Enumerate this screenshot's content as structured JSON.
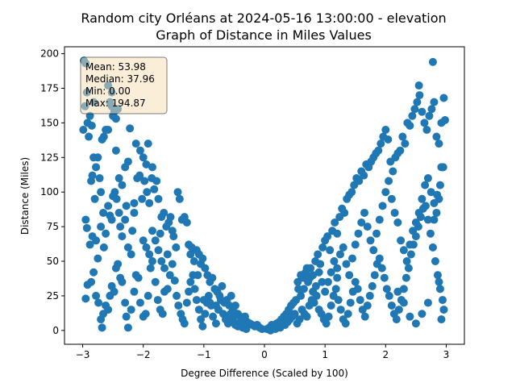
{
  "chart_data": {
    "type": "scatter",
    "title_line1": "Random city Orléans at 2024-05-16 13:00:00  - elevation",
    "title_line2": "Graph of Distance in Miles Values",
    "xlabel": "Degree Difference (Scaled by 100)",
    "ylabel": "Distance (Miles)",
    "xlim": [
      -3.3,
      3.3
    ],
    "ylim": [
      -10,
      205
    ],
    "xticks": [
      -3,
      -2,
      -1,
      0,
      1,
      2,
      3
    ],
    "yticks": [
      0,
      25,
      50,
      75,
      100,
      125,
      150,
      175,
      200
    ],
    "grid": false,
    "color": "#1f77b4",
    "stats": {
      "mean": "Mean: 53.98",
      "median": "Median: 37.96",
      "min": "Min: 0.00",
      "max": "Max: 194.87"
    },
    "points": [
      [
        -2.98,
        195
      ],
      [
        -2.95,
        193
      ],
      [
        -2.93,
        172
      ],
      [
        -2.96,
        162
      ],
      [
        -2.92,
        150
      ],
      [
        -2.99,
        145
      ],
      [
        -2.88,
        155
      ],
      [
        -2.85,
        148
      ],
      [
        -2.82,
        165
      ],
      [
        -2.9,
        140
      ],
      [
        -2.86,
        108
      ],
      [
        -2.84,
        112
      ],
      [
        -2.82,
        125
      ],
      [
        -2.78,
        118
      ],
      [
        -2.75,
        125
      ],
      [
        -2.72,
        110
      ],
      [
        -2.7,
        100
      ],
      [
        -2.68,
        138
      ],
      [
        -2.65,
        140
      ],
      [
        -2.62,
        145
      ],
      [
        -2.58,
        145
      ],
      [
        -2.55,
        165
      ],
      [
        -2.52,
        162
      ],
      [
        -2.5,
        155
      ],
      [
        -2.48,
        158
      ],
      [
        -2.45,
        153
      ],
      [
        -2.42,
        160
      ],
      [
        -2.58,
        177
      ],
      [
        -2.52,
        172
      ],
      [
        -2.22,
        146
      ],
      [
        -2.12,
        135
      ],
      [
        -2.05,
        130
      ],
      [
        -2.0,
        125
      ],
      [
        -1.95,
        120
      ],
      [
        -1.92,
        135
      ],
      [
        -1.85,
        118
      ],
      [
        -2.95,
        80
      ],
      [
        -2.93,
        74
      ],
      [
        -2.88,
        62
      ],
      [
        -2.84,
        68
      ],
      [
        -2.8,
        95
      ],
      [
        -2.75,
        52
      ],
      [
        -2.7,
        75
      ],
      [
        -2.66,
        85
      ],
      [
        -2.62,
        70
      ],
      [
        -2.58,
        90
      ],
      [
        -2.55,
        83
      ],
      [
        -2.52,
        80
      ],
      [
        -2.5,
        97
      ],
      [
        -2.47,
        100
      ],
      [
        -2.44,
        95
      ],
      [
        -2.4,
        85
      ],
      [
        -2.38,
        75
      ],
      [
        -2.35,
        68
      ],
      [
        -2.3,
        80
      ],
      [
        -2.28,
        90
      ],
      [
        -2.25,
        60
      ],
      [
        -2.2,
        55
      ],
      [
        -2.18,
        72
      ],
      [
        -2.15,
        85
      ],
      [
        -2.1,
        110
      ],
      [
        -2.06,
        112
      ],
      [
        -2.02,
        95
      ],
      [
        -1.98,
        108
      ],
      [
        -1.94,
        100
      ],
      [
        -1.9,
        92
      ],
      [
        -1.86,
        110
      ],
      [
        -1.82,
        102
      ],
      [
        -1.78,
        108
      ],
      [
        -1.75,
        95
      ],
      [
        -1.72,
        70
      ],
      [
        -1.7,
        82
      ],
      [
        -1.66,
        85
      ],
      [
        -1.62,
        75
      ],
      [
        -1.58,
        78
      ],
      [
        -1.55,
        82
      ],
      [
        -1.52,
        72
      ],
      [
        -1.5,
        68
      ],
      [
        -1.46,
        60
      ],
      [
        -1.43,
        100
      ],
      [
        -1.4,
        95
      ],
      [
        -1.36,
        80
      ],
      [
        -1.32,
        82
      ],
      [
        -1.28,
        78
      ],
      [
        -1.25,
        62
      ],
      [
        -1.22,
        55
      ],
      [
        -1.2,
        60
      ],
      [
        -1.16,
        50
      ],
      [
        -1.12,
        58
      ],
      [
        -1.08,
        55
      ],
      [
        -1.05,
        48
      ],
      [
        -1.02,
        52
      ],
      [
        -0.98,
        45
      ],
      [
        -0.94,
        40
      ],
      [
        -0.9,
        35
      ],
      [
        -0.86,
        38
      ],
      [
        -0.82,
        30
      ],
      [
        -0.78,
        28
      ],
      [
        -0.74,
        25
      ],
      [
        -0.7,
        32
      ],
      [
        -0.66,
        20
      ],
      [
        -0.62,
        22
      ],
      [
        -0.58,
        18
      ],
      [
        -0.55,
        25
      ],
      [
        -0.52,
        15
      ],
      [
        -0.48,
        18
      ],
      [
        -0.44,
        12
      ],
      [
        -0.4,
        10
      ],
      [
        -0.36,
        8
      ],
      [
        -0.32,
        10
      ],
      [
        -0.28,
        6
      ],
      [
        -0.24,
        5
      ],
      [
        -0.2,
        4
      ],
      [
        -0.16,
        3
      ],
      [
        -0.12,
        4
      ],
      [
        -0.08,
        2
      ],
      [
        -0.04,
        1
      ],
      [
        -2.95,
        23
      ],
      [
        -2.92,
        33
      ],
      [
        -2.86,
        35
      ],
      [
        -2.82,
        42
      ],
      [
        -2.78,
        25
      ],
      [
        -2.74,
        20
      ],
      [
        -2.7,
        8
      ],
      [
        -2.68,
        2
      ],
      [
        -2.66,
        12
      ],
      [
        -2.62,
        18
      ],
      [
        -2.58,
        15
      ],
      [
        -2.55,
        25
      ],
      [
        -2.52,
        32
      ],
      [
        -2.48,
        28
      ],
      [
        -2.45,
        45
      ],
      [
        -2.42,
        48
      ],
      [
        -2.38,
        38
      ],
      [
        -2.35,
        35
      ],
      [
        -2.3,
        20
      ],
      [
        -2.28,
        10
      ],
      [
        -2.25,
        2
      ],
      [
        -2.2,
        15
      ],
      [
        -2.15,
        28
      ],
      [
        -2.12,
        40
      ],
      [
        -2.08,
        38
      ],
      [
        -2.05,
        20
      ],
      [
        -2.0,
        10
      ],
      [
        -1.96,
        12
      ],
      [
        -1.92,
        25
      ],
      [
        -1.88,
        45
      ],
      [
        -1.85,
        50
      ],
      [
        -1.8,
        35
      ],
      [
        -1.76,
        22
      ],
      [
        -1.72,
        15
      ],
      [
        -1.68,
        12
      ],
      [
        -1.65,
        28
      ],
      [
        -1.6,
        30
      ],
      [
        -1.56,
        40
      ],
      [
        -1.52,
        48
      ],
      [
        -1.48,
        36
      ],
      [
        -1.45,
        25
      ],
      [
        -1.42,
        18
      ],
      [
        -1.38,
        12
      ],
      [
        -1.35,
        8
      ],
      [
        -1.32,
        5
      ],
      [
        -1.28,
        20
      ],
      [
        -1.25,
        28
      ],
      [
        -1.22,
        35
      ],
      [
        -1.18,
        40
      ],
      [
        -1.15,
        30
      ],
      [
        -1.12,
        22
      ],
      [
        -1.08,
        15
      ],
      [
        -1.05,
        8
      ],
      [
        -1.02,
        3
      ],
      [
        -0.98,
        12
      ],
      [
        -0.95,
        20
      ],
      [
        -0.92,
        25
      ],
      [
        -0.88,
        18
      ],
      [
        -0.85,
        10
      ],
      [
        -0.8,
        5
      ],
      [
        -0.76,
        15
      ],
      [
        -0.72,
        22
      ],
      [
        -0.68,
        12
      ],
      [
        -0.64,
        8
      ],
      [
        -0.6,
        5
      ],
      [
        -0.56,
        12
      ],
      [
        -0.52,
        8
      ],
      [
        -0.48,
        4
      ],
      [
        -0.44,
        3
      ],
      [
        -0.4,
        6
      ],
      [
        -0.36,
        2
      ],
      [
        -0.3,
        1
      ],
      [
        0.04,
        1
      ],
      [
        0.08,
        2
      ],
      [
        0.12,
        4
      ],
      [
        0.16,
        3
      ],
      [
        0.2,
        5
      ],
      [
        0.24,
        6
      ],
      [
        0.28,
        8
      ],
      [
        0.32,
        10
      ],
      [
        0.36,
        12
      ],
      [
        0.4,
        15
      ],
      [
        0.44,
        18
      ],
      [
        0.48,
        20
      ],
      [
        0.52,
        22
      ],
      [
        0.56,
        30
      ],
      [
        0.6,
        25
      ],
      [
        0.64,
        38
      ],
      [
        0.68,
        42
      ],
      [
        0.72,
        35
      ],
      [
        0.76,
        45
      ],
      [
        0.8,
        40
      ],
      [
        0.84,
        50
      ],
      [
        0.88,
        55
      ],
      [
        0.92,
        48
      ],
      [
        0.96,
        60
      ],
      [
        1.0,
        65
      ],
      [
        1.04,
        68
      ],
      [
        1.08,
        58
      ],
      [
        1.12,
        72
      ],
      [
        1.16,
        78
      ],
      [
        1.2,
        70
      ],
      [
        1.24,
        82
      ],
      [
        1.28,
        88
      ],
      [
        1.32,
        85
      ],
      [
        1.36,
        95
      ],
      [
        1.4,
        98
      ],
      [
        1.44,
        100
      ],
      [
        1.48,
        105
      ],
      [
        1.52,
        110
      ],
      [
        1.56,
        108
      ],
      [
        1.6,
        115
      ],
      [
        1.64,
        112
      ],
      [
        1.68,
        120
      ],
      [
        1.72,
        118
      ],
      [
        1.76,
        122
      ],
      [
        1.8,
        125
      ],
      [
        1.84,
        128
      ],
      [
        1.88,
        130
      ],
      [
        1.92,
        135
      ],
      [
        1.96,
        140
      ],
      [
        2.0,
        145
      ],
      [
        2.04,
        138
      ],
      [
        2.08,
        122
      ],
      [
        2.12,
        115
      ],
      [
        2.16,
        125
      ],
      [
        2.2,
        128
      ],
      [
        2.24,
        130
      ],
      [
        2.28,
        140
      ],
      [
        2.32,
        135
      ],
      [
        2.36,
        150
      ],
      [
        2.4,
        148
      ],
      [
        2.44,
        155
      ],
      [
        2.48,
        160
      ],
      [
        2.52,
        165
      ],
      [
        2.56,
        170
      ],
      [
        2.6,
        158
      ],
      [
        2.64,
        150
      ],
      [
        2.68,
        145
      ],
      [
        2.72,
        155
      ],
      [
        2.76,
        160
      ],
      [
        2.8,
        165
      ],
      [
        2.84,
        140
      ],
      [
        2.88,
        135
      ],
      [
        2.92,
        150
      ],
      [
        2.96,
        168
      ],
      [
        2.98,
        152
      ],
      [
        2.78,
        194
      ],
      [
        2.55,
        177
      ],
      [
        2.92,
        118
      ],
      [
        2.88,
        95
      ],
      [
        2.84,
        85
      ],
      [
        2.8,
        80
      ],
      [
        0.1,
        0
      ],
      [
        0.14,
        2
      ],
      [
        0.18,
        1
      ],
      [
        0.22,
        3
      ],
      [
        0.26,
        2
      ],
      [
        0.3,
        5
      ],
      [
        0.34,
        4
      ],
      [
        0.38,
        6
      ],
      [
        0.42,
        8
      ],
      [
        0.46,
        10
      ],
      [
        0.5,
        12
      ],
      [
        0.54,
        5
      ],
      [
        0.58,
        8
      ],
      [
        0.62,
        15
      ],
      [
        0.66,
        12
      ],
      [
        0.7,
        10
      ],
      [
        0.74,
        18
      ],
      [
        0.78,
        22
      ],
      [
        0.82,
        20
      ],
      [
        0.86,
        25
      ],
      [
        0.9,
        15
      ],
      [
        0.94,
        12
      ],
      [
        0.98,
        8
      ],
      [
        1.02,
        5
      ],
      [
        1.06,
        10
      ],
      [
        1.1,
        18
      ],
      [
        1.14,
        25
      ],
      [
        1.18,
        30
      ],
      [
        1.22,
        22
      ],
      [
        1.26,
        15
      ],
      [
        1.3,
        8
      ],
      [
        1.34,
        5
      ],
      [
        1.38,
        12
      ],
      [
        1.42,
        20
      ],
      [
        1.46,
        28
      ],
      [
        1.5,
        35
      ],
      [
        1.54,
        30
      ],
      [
        1.58,
        22
      ],
      [
        1.62,
        15
      ],
      [
        1.66,
        10
      ],
      [
        1.7,
        18
      ],
      [
        1.74,
        25
      ],
      [
        1.78,
        32
      ],
      [
        1.82,
        40
      ],
      [
        1.86,
        48
      ],
      [
        1.9,
        52
      ],
      [
        1.94,
        45
      ],
      [
        1.98,
        38
      ],
      [
        2.02,
        30
      ],
      [
        2.06,
        25
      ],
      [
        2.1,
        18
      ],
      [
        2.14,
        12
      ],
      [
        2.18,
        8
      ],
      [
        2.22,
        15
      ],
      [
        2.26,
        22
      ],
      [
        2.3,
        30
      ],
      [
        2.34,
        38
      ],
      [
        2.38,
        45
      ],
      [
        2.42,
        55
      ],
      [
        2.46,
        62
      ],
      [
        2.5,
        68
      ],
      [
        2.54,
        75
      ],
      [
        2.58,
        82
      ],
      [
        2.62,
        88
      ],
      [
        2.66,
        90
      ],
      [
        2.7,
        80
      ],
      [
        2.74,
        70
      ],
      [
        2.78,
        60
      ],
      [
        2.82,
        50
      ],
      [
        2.86,
        40
      ],
      [
        2.9,
        30
      ],
      [
        2.94,
        22
      ],
      [
        2.96,
        15
      ],
      [
        2.92,
        8
      ],
      [
        2.88,
        35
      ],
      [
        2.7,
        20
      ],
      [
        2.6,
        12
      ],
      [
        2.5,
        5
      ],
      [
        2.4,
        10
      ],
      [
        2.3,
        20
      ],
      [
        2.2,
        28
      ],
      [
        1.2,
        45
      ],
      [
        1.25,
        55
      ],
      [
        1.3,
        60
      ],
      [
        1.35,
        48
      ],
      [
        1.4,
        40
      ],
      [
        1.45,
        52
      ],
      [
        1.5,
        62
      ],
      [
        1.55,
        70
      ],
      [
        1.6,
        78
      ],
      [
        1.65,
        85
      ],
      [
        1.7,
        75
      ],
      [
        1.75,
        65
      ],
      [
        1.8,
        58
      ],
      [
        1.85,
        70
      ],
      [
        1.9,
        80
      ],
      [
        1.95,
        90
      ],
      [
        2.0,
        100
      ],
      [
        2.05,
        108
      ],
      [
        2.1,
        95
      ],
      [
        2.15,
        85
      ],
      [
        2.2,
        78
      ],
      [
        2.25,
        65
      ],
      [
        2.3,
        58
      ],
      [
        2.35,
        50
      ],
      [
        2.4,
        62
      ],
      [
        2.45,
        72
      ],
      [
        2.5,
        78
      ],
      [
        2.55,
        85
      ],
      [
        2.6,
        95
      ],
      [
        2.65,
        105
      ],
      [
        2.7,
        110
      ],
      [
        2.75,
        100
      ],
      [
        2.8,
        92
      ],
      [
        2.85,
        98
      ],
      [
        2.9,
        105
      ],
      [
        2.95,
        118
      ],
      [
        0.55,
        35
      ],
      [
        0.6,
        40
      ],
      [
        0.65,
        30
      ],
      [
        0.7,
        45
      ],
      [
        0.75,
        38
      ],
      [
        0.8,
        28
      ],
      [
        0.85,
        32
      ],
      [
        0.9,
        42
      ],
      [
        0.95,
        35
      ],
      [
        1.0,
        28
      ],
      [
        1.05,
        35
      ],
      [
        1.1,
        42
      ],
      [
        1.15,
        50
      ],
      [
        1.2,
        38
      ],
      [
        -1.1,
        40
      ],
      [
        -1.0,
        22
      ],
      [
        -0.9,
        20
      ],
      [
        -0.8,
        18
      ],
      [
        -2.0,
        65
      ],
      [
        -1.95,
        60
      ],
      [
        -1.9,
        55
      ],
      [
        -1.85,
        72
      ],
      [
        -1.8,
        65
      ],
      [
        -1.75,
        58
      ],
      [
        -1.7,
        50
      ],
      [
        -1.65,
        45
      ],
      [
        -1.6,
        55
      ],
      [
        -2.4,
        110
      ],
      [
        -2.35,
        105
      ],
      [
        -2.45,
        130
      ],
      [
        -2.3,
        118
      ],
      [
        -2.25,
        122
      ],
      [
        -2.15,
        92
      ],
      [
        -2.65,
        60
      ],
      [
        -2.78,
        65
      ]
    ]
  }
}
